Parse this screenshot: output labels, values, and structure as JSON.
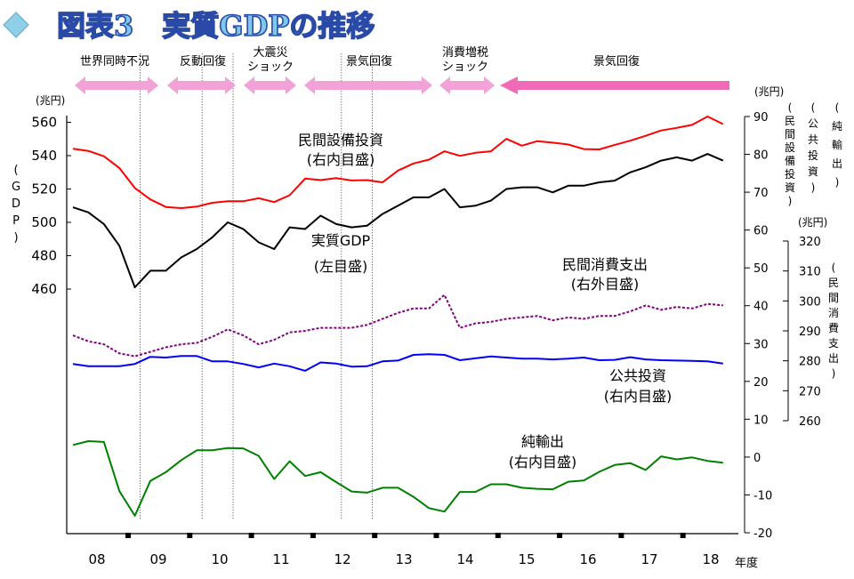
{
  "chart_data": {
    "type": "line",
    "title": "図表3　実質GDPの推移",
    "x_unit": "年度",
    "x_tick_labels": [
      "08",
      "09",
      "10",
      "11",
      "12",
      "13",
      "14",
      "15",
      "16",
      "17",
      "18"
    ],
    "periods": [
      {
        "name": "世界同時不況",
        "start": 0,
        "end": 4
      },
      {
        "name": "反動回復",
        "start": 4,
        "end": 8
      },
      {
        "name": "大震災ショック",
        "start": 8,
        "end": 10
      },
      {
        "name": "景気回復",
        "start": 10,
        "end": 17
      },
      {
        "name": "消費増税ショック",
        "start": 17,
        "end": 19
      },
      {
        "name": "景気回復",
        "start": 19,
        "end": 41
      }
    ],
    "axes": {
      "left": {
        "unit": "(兆円)",
        "title": "(GDP)",
        "ticks": [
          460,
          480,
          500,
          520,
          540,
          560
        ],
        "range": [
          460,
          560
        ]
      },
      "right_inner": {
        "unit": "(兆円)",
        "ticks": [
          -20,
          -10,
          0,
          10,
          20,
          30,
          40,
          50,
          60,
          70,
          80,
          90
        ],
        "range": [
          -20,
          90
        ],
        "titles": [
          "(民間設備投資)",
          "(公共投資)",
          "(純輸出)"
        ]
      },
      "right_outer": {
        "unit": "(兆円)",
        "ticks": [
          260,
          270,
          280,
          290,
          300,
          310,
          320
        ],
        "range": [
          260,
          320
        ],
        "title": "(民間消費支出)"
      }
    },
    "series": [
      {
        "name": "民間設備投資",
        "axis_note": "(右内目盛)",
        "color": "#ff0000",
        "axis": "right_inner",
        "values": [
          81.5,
          80.9,
          79.5,
          76.4,
          71.1,
          68.1,
          66.1,
          65.8,
          66.2,
          67.2,
          67.6,
          67.6,
          68.4,
          67.4,
          69.2,
          73.6,
          73.2,
          73.7,
          73.1,
          73.2,
          72.6,
          75.7,
          77.6,
          78.6,
          80.8,
          79.6,
          80.4,
          80.8,
          84.1,
          82.3,
          83.5,
          83.1,
          82.6,
          81.4,
          81.3,
          82.5,
          83.6,
          84.9,
          86.3,
          87.0,
          87.8,
          90.0,
          88.0
        ]
      },
      {
        "name": "実質GDP",
        "axis_note": "(左目盛)",
        "color": "#000000",
        "axis": "left",
        "values": [
          509,
          506,
          499,
          486,
          461,
          471,
          471,
          479,
          484,
          491,
          500,
          496,
          488,
          484,
          497,
          496,
          504,
          499,
          497,
          498,
          505,
          510,
          515,
          515,
          520,
          509,
          510,
          513,
          520,
          521,
          521,
          518,
          522,
          522,
          524,
          525,
          530,
          533,
          537,
          539,
          537,
          541,
          537
        ]
      },
      {
        "name": "民間消費支出",
        "axis_note": "(右外目盛)",
        "color": "#800080",
        "axis": "right_outer",
        "values": [
          288.5,
          286.5,
          285.5,
          282.5,
          281.5,
          283.0,
          284.5,
          285.5,
          286.0,
          288.0,
          290.5,
          288.5,
          285.5,
          287.0,
          289.5,
          290.0,
          291.0,
          291.0,
          291.0,
          292.0,
          294.0,
          296.0,
          297.5,
          297.5,
          302.0,
          291.0,
          292.5,
          293.0,
          294.0,
          294.5,
          295.0,
          293.5,
          294.5,
          294.0,
          295.0,
          295.0,
          296.5,
          298.5,
          297.0,
          298.0,
          297.5,
          299.0,
          298.5
        ]
      },
      {
        "name": "公共投資",
        "axis_note": "(右内目盛)",
        "color": "#0000ff",
        "axis": "right_inner",
        "values": [
          24.6,
          24.0,
          24.0,
          24.0,
          24.6,
          26.5,
          26.3,
          26.7,
          26.7,
          25.3,
          25.3,
          24.6,
          23.7,
          24.7,
          24.0,
          22.8,
          25.0,
          24.7,
          23.9,
          24.0,
          25.3,
          25.5,
          27.0,
          27.2,
          27.0,
          25.6,
          26.1,
          26.6,
          26.3,
          26.0,
          26.0,
          25.8,
          26.0,
          26.3,
          25.6,
          25.7,
          26.4,
          25.8,
          25.6,
          25.5,
          25.4,
          25.3,
          24.7
        ]
      },
      {
        "name": "純輸出",
        "axis_note": "(右内目盛)",
        "color": "#008000",
        "axis": "right_inner",
        "values": [
          3.2,
          4.2,
          4.0,
          -9.0,
          -15.5,
          -6.3,
          -4.0,
          -0.8,
          1.8,
          1.8,
          2.4,
          2.3,
          0.3,
          -5.8,
          -1.1,
          -5.0,
          -4.0,
          -6.6,
          -9.1,
          -9.4,
          -8.1,
          -8.1,
          -10.5,
          -13.5,
          -14.4,
          -9.2,
          -9.2,
          -7.2,
          -7.2,
          -8.1,
          -8.4,
          -8.5,
          -6.5,
          -6.2,
          -3.9,
          -2.1,
          -1.6,
          -3.4,
          0.2,
          -0.6,
          -0.1,
          -1.0,
          -1.5
        ]
      }
    ]
  }
}
